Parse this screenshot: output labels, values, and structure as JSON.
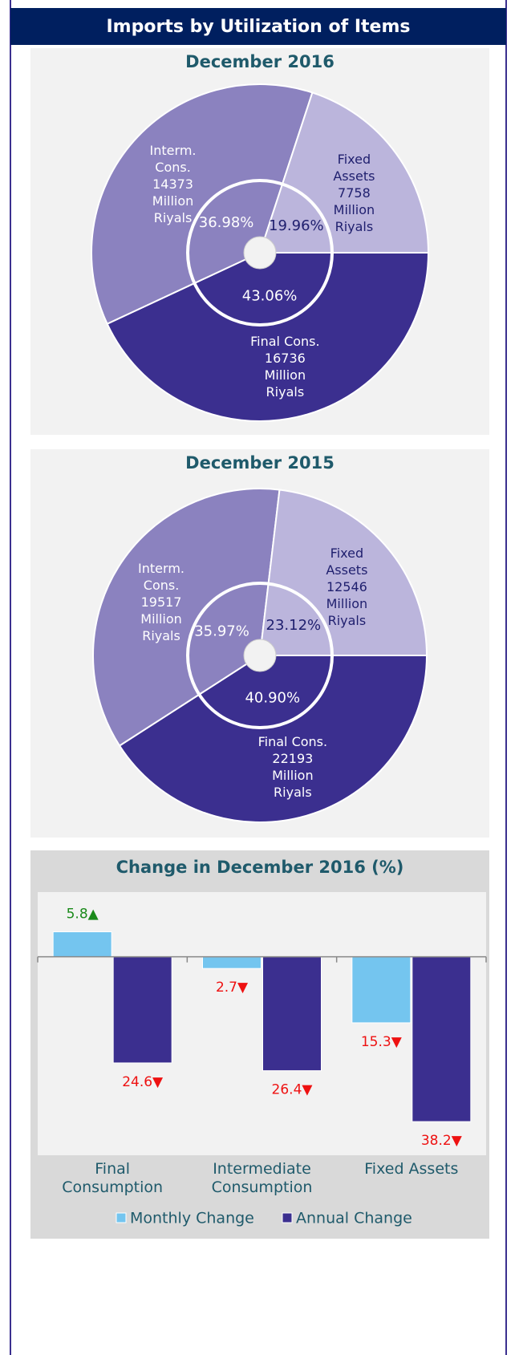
{
  "title": "Imports by Utilization of Items",
  "chart_data": [
    {
      "type": "pie",
      "title": "December 2016",
      "categories": [
        "Final Cons.",
        "Interm. Cons.",
        "Fixed Assets"
      ],
      "values": [
        43.06,
        36.98,
        19.96
      ],
      "value_labels": [
        "43.06%",
        "36.98%",
        "19.96%"
      ],
      "amounts": [
        16736,
        14373,
        7758
      ],
      "unit": "Million Riyals",
      "colors": [
        "#3b2f8f",
        "#8b82bf",
        "#bbb5dc"
      ],
      "label_colors": [
        "#ffffff",
        "#ffffff",
        "#1f1f6e"
      ]
    },
    {
      "type": "pie",
      "title": "December 2015",
      "categories": [
        "Final Cons.",
        "Interm. Cons.",
        "Fixed Assets"
      ],
      "values": [
        40.9,
        35.97,
        23.12
      ],
      "value_labels": [
        "40.90%",
        "35.97%",
        "23.12%"
      ],
      "amounts": [
        22193,
        19517,
        12546
      ],
      "unit": "Million Riyals",
      "colors": [
        "#3b2f8f",
        "#8b82bf",
        "#bbb5dc"
      ],
      "label_colors": [
        "#ffffff",
        "#ffffff",
        "#1f1f6e"
      ]
    },
    {
      "type": "bar",
      "title": "Change in December 2016 (%)",
      "categories": [
        "Final Consumption",
        "Intermediate Consumption",
        "Fixed Assets"
      ],
      "series": [
        {
          "name": "Monthly Change",
          "color": "#74c5ef",
          "values": [
            5.8,
            -2.7,
            -15.3
          ],
          "value_labels": [
            "5.8▲",
            "2.7▼",
            "15.3▼"
          ]
        },
        {
          "name": "Annual Change",
          "color": "#3b2f8f",
          "values": [
            -24.6,
            -26.4,
            -38.2
          ],
          "value_labels": [
            "24.6▼",
            "26.4▼",
            "38.2▼"
          ]
        }
      ],
      "ylim": [
        -46,
        15
      ],
      "legend": "bottom"
    }
  ]
}
